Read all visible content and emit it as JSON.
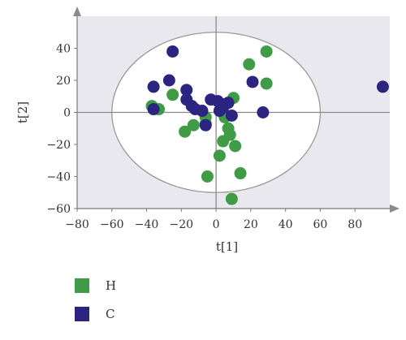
{
  "chart_data": {
    "type": "scatter",
    "xlabel": "t[1]",
    "ylabel": "t[2]",
    "xlim": [
      -80,
      100
    ],
    "ylim": [
      -60,
      60
    ],
    "xticks": [
      -80,
      -60,
      -40,
      -20,
      0,
      20,
      40,
      60,
      80
    ],
    "yticks": [
      -60,
      -40,
      -20,
      0,
      20,
      40
    ],
    "grid": false,
    "ellipse": {
      "cx": 0,
      "cy": 0,
      "rx": 60,
      "ry": 50
    },
    "legend_position": "bottom-left",
    "colors": {
      "H": "#3f9b45",
      "C": "#2b2480",
      "background": "#e8e8ee",
      "ellipse": "#ffffff"
    },
    "series": [
      {
        "name": "H",
        "color": "#3f9b45",
        "x": [
          -37,
          -33,
          -25,
          -18,
          -13,
          -6,
          -5,
          2,
          4,
          5,
          7,
          8,
          9,
          10,
          11,
          14,
          19,
          29,
          29,
          -6
        ],
        "y": [
          4,
          2,
          11,
          -12,
          -8,
          -7,
          -40,
          -27,
          -18,
          -3,
          -10,
          -14,
          -54,
          9,
          -21,
          -38,
          30,
          38,
          18,
          -3
        ]
      },
      {
        "name": "C",
        "color": "#2b2480",
        "x": [
          -36,
          -36,
          -27,
          -25,
          -17,
          -17,
          -14,
          -12,
          -8,
          -6,
          -3,
          1,
          2,
          4,
          5,
          7,
          9,
          21,
          27,
          96
        ],
        "y": [
          16,
          2,
          20,
          38,
          14,
          8,
          4,
          2,
          1,
          -8,
          8,
          7,
          1,
          3,
          5,
          6,
          -2,
          19,
          0,
          16
        ]
      }
    ]
  }
}
